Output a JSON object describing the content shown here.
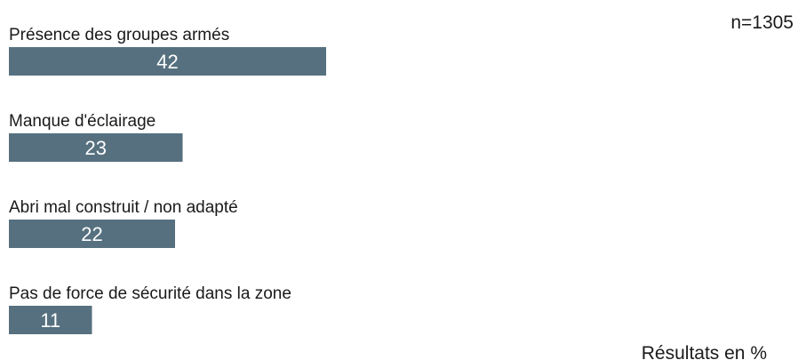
{
  "chart_data": {
    "type": "bar",
    "orientation": "horizontal",
    "categories": [
      "Présence des groupes armés",
      "Manque d'éclairage",
      "Abri mal construit / non adapté",
      "Pas de force de sécurité dans la zone"
    ],
    "values": [
      42,
      23,
      22,
      11
    ],
    "xlim": [
      0,
      100
    ],
    "grid": false,
    "bar_color": "#56707f",
    "sample_size": "n=1305",
    "footnote": "Résultats en %"
  }
}
